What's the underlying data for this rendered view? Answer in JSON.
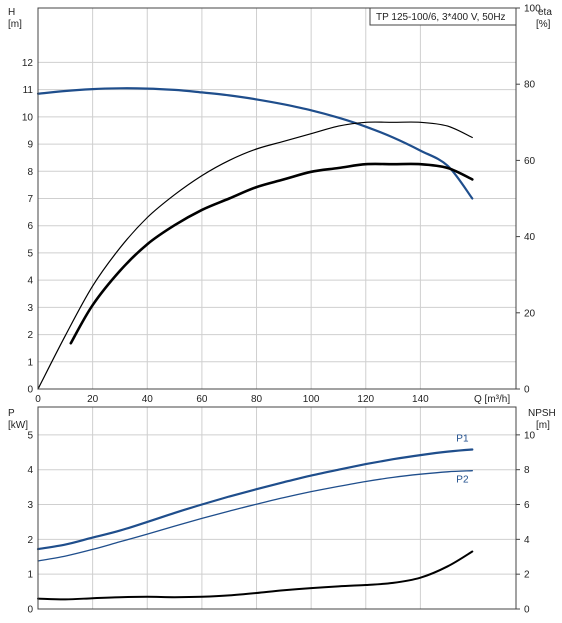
{
  "legend": "TP 125-100/6, 3*400 V, 50Hz",
  "colors": {
    "blue": "#1f4e8c",
    "blue_light": "#8aa7c8",
    "black": "#000000",
    "grid": "#cfcfcf",
    "frame": "#444444"
  },
  "top": {
    "left_axis_title": "H",
    "left_axis_unit": "[m]",
    "right_axis_title": "eta",
    "right_axis_unit": "[%]",
    "x_axis_label": "Q [m³/h]"
  },
  "bottom": {
    "left_axis_title": "P",
    "left_axis_unit": "[kW]",
    "right_axis_title": "NPSH",
    "right_axis_unit": "[m]"
  },
  "chart_data": [
    {
      "type": "line",
      "panel": "head-and-efficiency",
      "x_label": "Q [m³/h]",
      "xlim": [
        0,
        175
      ],
      "x_ticks": [
        0,
        20,
        40,
        60,
        80,
        100,
        120,
        140
      ],
      "y_left": {
        "label": "H [m]",
        "lim": [
          0,
          14
        ],
        "ticks": [
          0,
          1,
          2,
          3,
          4,
          5,
          6,
          7,
          8,
          9,
          10,
          11,
          12
        ]
      },
      "y_right": {
        "label": "eta [%]",
        "lim": [
          0,
          100
        ],
        "ticks": [
          0,
          20,
          40,
          60,
          80,
          100
        ],
        "offset_ticks_note": ""
      },
      "grid": true,
      "series": [
        {
          "key": "H",
          "axis": "left",
          "color": "#1f4e8c",
          "x": [
            0,
            10,
            20,
            30,
            40,
            50,
            60,
            70,
            80,
            90,
            100,
            110,
            120,
            130,
            140,
            150,
            159
          ],
          "y": [
            10.85,
            10.95,
            11.02,
            11.05,
            11.04,
            10.99,
            10.9,
            10.79,
            10.64,
            10.46,
            10.24,
            9.97,
            9.64,
            9.24,
            8.76,
            8.2,
            7.0
          ]
        },
        {
          "key": "eta_thin",
          "axis": "right",
          "color": "#000000",
          "x": [
            0,
            10,
            20,
            30,
            40,
            50,
            60,
            70,
            80,
            90,
            100,
            110,
            120,
            130,
            140,
            150,
            159
          ],
          "y": [
            0,
            14,
            27,
            37,
            45,
            51,
            56,
            60,
            63,
            65,
            67,
            69,
            70,
            70,
            70,
            69,
            66
          ]
        },
        {
          "key": "eta_thick",
          "axis": "right",
          "color": "#000000",
          "x": [
            12,
            20,
            30,
            40,
            50,
            60,
            70,
            80,
            90,
            100,
            110,
            120,
            130,
            140,
            150,
            159
          ],
          "y": [
            12,
            22,
            31,
            38,
            43,
            47,
            50,
            53,
            55,
            57,
            58,
            59,
            59,
            59,
            58,
            55
          ]
        }
      ]
    },
    {
      "type": "line",
      "panel": "power-and-npsh",
      "xlim": [
        0,
        175
      ],
      "x_ticks": [
        0,
        20,
        40,
        60,
        80,
        100,
        120,
        140
      ],
      "y_left": {
        "label": "P [kW]",
        "lim": [
          0,
          5.8
        ],
        "ticks": [
          0,
          1,
          2,
          3,
          4,
          5
        ]
      },
      "y_right": {
        "label": "NPSH [m]",
        "lim": [
          0,
          11.6
        ],
        "ticks": [
          0,
          2,
          4,
          6,
          8,
          10
        ]
      },
      "grid": true,
      "series": [
        {
          "key": "P1",
          "name": "P1",
          "axis": "left",
          "color": "#1f4e8c",
          "x": [
            0,
            10,
            20,
            30,
            40,
            50,
            60,
            70,
            80,
            90,
            100,
            110,
            120,
            130,
            140,
            150,
            159
          ],
          "y": [
            1.72,
            1.85,
            2.05,
            2.25,
            2.5,
            2.76,
            3.0,
            3.23,
            3.44,
            3.64,
            3.83,
            4.0,
            4.16,
            4.3,
            4.42,
            4.52,
            4.58
          ]
        },
        {
          "key": "P2",
          "name": "P2",
          "axis": "left",
          "color": "#1f4e8c",
          "x": [
            0,
            10,
            20,
            30,
            40,
            50,
            60,
            70,
            80,
            90,
            100,
            110,
            120,
            130,
            140,
            150,
            159
          ],
          "y": [
            1.38,
            1.52,
            1.71,
            1.93,
            2.15,
            2.38,
            2.6,
            2.81,
            3.01,
            3.2,
            3.37,
            3.52,
            3.66,
            3.78,
            3.87,
            3.94,
            3.97
          ]
        },
        {
          "key": "NPSH",
          "axis": "right",
          "color": "#000000",
          "x": [
            0,
            10,
            20,
            30,
            40,
            50,
            60,
            70,
            80,
            90,
            100,
            110,
            120,
            130,
            140,
            150,
            159
          ],
          "y": [
            0.6,
            0.55,
            0.62,
            0.68,
            0.7,
            0.68,
            0.7,
            0.78,
            0.92,
            1.08,
            1.2,
            1.3,
            1.38,
            1.5,
            1.8,
            2.45,
            3.3
          ]
        }
      ]
    }
  ]
}
